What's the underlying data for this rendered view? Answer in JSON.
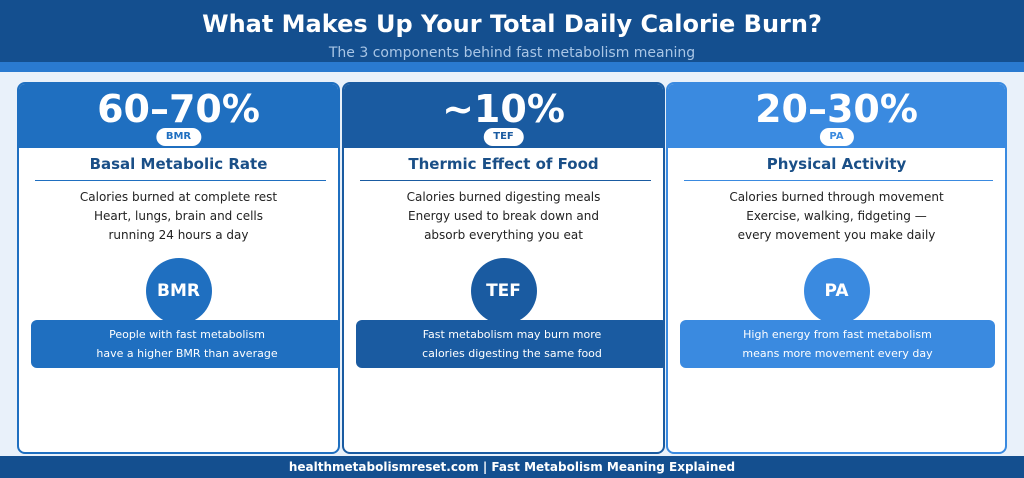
{
  "header": {
    "title": "What Makes Up Your Total Daily Calorie Burn?",
    "subtitle": "The 3 components behind fast metabolism meaning"
  },
  "cards": [
    {
      "percent": "60–70%",
      "abbr": "BMR",
      "name": "Basal Metabolic Rate",
      "desc": [
        "Calories burned at complete rest",
        "Heart, lungs, brain and cells",
        "running 24 hours a day"
      ],
      "circle": "BMR",
      "note": [
        "People with fast metabolism",
        "have a higher BMR than average"
      ],
      "color": "#1f6fc0"
    },
    {
      "percent": "~10%",
      "abbr": "TEF",
      "name": "Thermic Effect of Food",
      "desc": [
        "Calories burned digesting meals",
        "Energy used to break down and",
        "absorb everything you eat"
      ],
      "circle": "TEF",
      "note": [
        "Fast metabolism may burn more",
        "calories digesting the same food"
      ],
      "color": "#1a5ba1"
    },
    {
      "percent": "20–30%",
      "abbr": "PA",
      "name": "Physical Activity",
      "desc": [
        "Calories burned through movement",
        "Exercise, walking, fidgeting —",
        "every movement you make daily"
      ],
      "circle": "PA",
      "note": [
        "High energy from fast metabolism",
        "means more movement every day"
      ],
      "color": "#3a8ae0"
    }
  ],
  "footer": {
    "text": "healthmetabolismreset.com  |  Fast Metabolism Meaning Explained"
  },
  "colors": {
    "header_bg": "#144f8f",
    "stripe": "#2a7ad0",
    "heading_text": "#1a4f87"
  }
}
